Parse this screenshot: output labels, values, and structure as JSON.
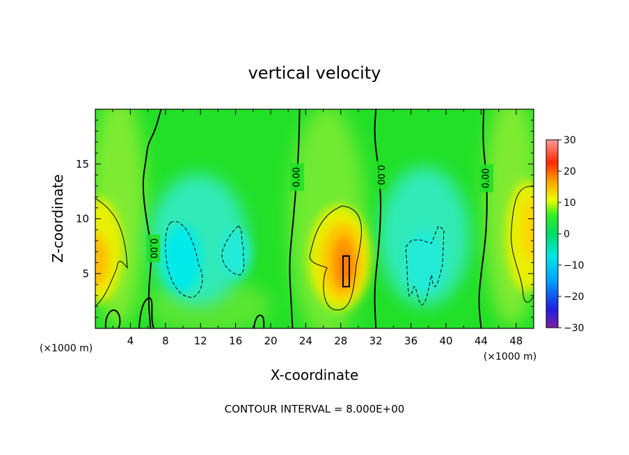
{
  "chart_data": {
    "type": "heatmap",
    "title": "vertical velocity",
    "xlabel": "X-coordinate",
    "ylabel": "Z-coordinate",
    "x_unit_left": "(×1000 m)",
    "x_unit_right": "(×1000 m)",
    "xlim": [
      0,
      50
    ],
    "ylim": [
      0,
      20
    ],
    "x_ticks": [
      4,
      8,
      12,
      16,
      20,
      24,
      28,
      32,
      36,
      40,
      44,
      48
    ],
    "y_ticks": [
      5,
      10,
      15
    ],
    "footer": "CONTOUR INTERVAL = 8.000E+00",
    "zero_contour_label": "0.00",
    "colorbar": {
      "range": [
        -30,
        30
      ],
      "ticks": [
        30,
        20,
        10,
        0,
        -10,
        -20,
        -30
      ],
      "tick_labels": [
        "30",
        "20",
        "10",
        "0",
        "−10",
        "−20",
        "−30"
      ],
      "colors": [
        "#7b1fa2",
        "#1f1fe0",
        "#00a0ff",
        "#00e5e5",
        "#00dd66",
        "#33ee22",
        "#eaff00",
        "#ffa000",
        "#ff2a00",
        "#ff9a9a"
      ]
    },
    "features": [
      {
        "kind": "updraft",
        "x": 28.5,
        "z": 7.5,
        "peak": 18
      },
      {
        "kind": "updraft",
        "x": 0.5,
        "z": 6.5,
        "peak": 12
      },
      {
        "kind": "updraft",
        "x": 49.5,
        "z": 9.0,
        "peak": 10
      },
      {
        "kind": "downdraft",
        "x": 9.5,
        "z": 6.5,
        "peak": -9
      },
      {
        "kind": "downdraft",
        "x": 16.0,
        "z": 6.5,
        "peak": -7
      },
      {
        "kind": "downdraft",
        "x": 38.0,
        "z": 6.0,
        "peak": -7
      }
    ],
    "zero_contour_lines": [
      [
        [
          6.3,
          0
        ],
        [
          6.0,
          3.0
        ],
        [
          6.5,
          7.0
        ],
        [
          5.6,
          11.0
        ],
        [
          5.4,
          13.5
        ],
        [
          5.8,
          15.5
        ],
        [
          6.0,
          16.8
        ],
        [
          6.8,
          18.0
        ],
        [
          7.5,
          20
        ]
      ],
      [
        [
          22.5,
          0
        ],
        [
          22.3,
          3.0
        ],
        [
          22.1,
          6.0
        ],
        [
          22.6,
          10.0
        ],
        [
          23.0,
          14.0
        ],
        [
          23.2,
          16.5
        ],
        [
          23.3,
          20
        ]
      ],
      [
        [
          32.0,
          0
        ],
        [
          31.8,
          3.5
        ],
        [
          32.3,
          7.0
        ],
        [
          32.6,
          11.0
        ],
        [
          32.4,
          14.0
        ],
        [
          31.8,
          17.5
        ],
        [
          32.0,
          20
        ]
      ],
      [
        [
          44.0,
          0
        ],
        [
          43.7,
          2.5
        ],
        [
          44.0,
          5.0
        ],
        [
          44.5,
          8.0
        ],
        [
          44.7,
          11.0
        ],
        [
          44.6,
          14.0
        ],
        [
          44.2,
          17.0
        ],
        [
          44.3,
          20
        ]
      ]
    ],
    "zero_contour_label_positions": [
      {
        "x": 6.6,
        "z": 7.3,
        "rotate": 90
      },
      {
        "x": 23.0,
        "z": 13.8,
        "rotate": -90
      },
      {
        "x": 32.5,
        "z": 14.0,
        "rotate": 90
      },
      {
        "x": 44.6,
        "z": 13.7,
        "rotate": -90
      }
    ]
  }
}
